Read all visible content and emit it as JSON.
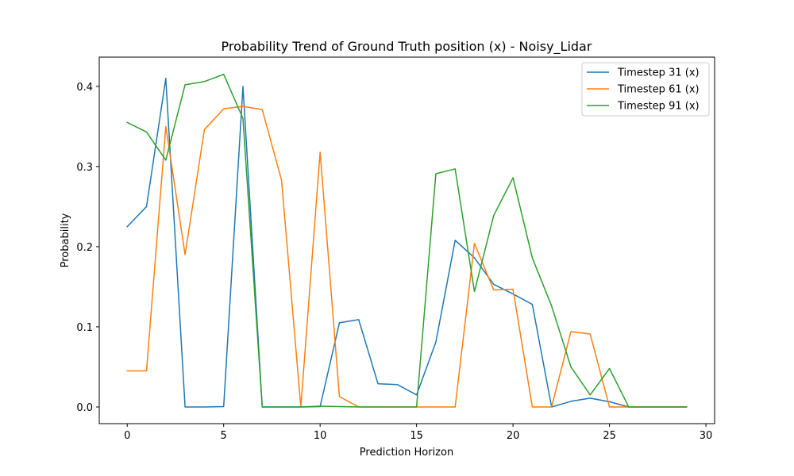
{
  "chart_data": {
    "type": "line",
    "title": "Probability Trend of Ground Truth position (x) - Noisy_Lidar",
    "xlabel": "Prediction Horizon",
    "ylabel": "Probability",
    "xlim": [
      -1.45,
      30.45
    ],
    "ylim": [
      -0.0208,
      0.4365
    ],
    "xticks": [
      0,
      5,
      10,
      15,
      20,
      25,
      30
    ],
    "yticks": [
      0.0,
      0.1,
      0.2,
      0.3,
      0.4
    ],
    "ytick_labels": [
      "0.0",
      "0.1",
      "0.2",
      "0.3",
      "0.4"
    ],
    "grid": false,
    "legend_position": "upper right",
    "x": [
      0,
      1,
      2,
      3,
      4,
      5,
      6,
      7,
      8,
      9,
      10,
      11,
      12,
      13,
      14,
      15,
      16,
      17,
      18,
      19,
      20,
      21,
      22,
      23,
      24,
      25,
      26,
      27,
      28,
      29
    ],
    "series": [
      {
        "name": "Timestep 31 (x)",
        "color": "#1f77b4",
        "values": [
          0.225,
          0.25,
          0.41,
          0.0,
          0.0,
          0.0005,
          0.4,
          0.0,
          0.0,
          0.0,
          0.0005,
          0.105,
          0.109,
          0.029,
          0.028,
          0.015,
          0.081,
          0.208,
          0.186,
          0.153,
          0.141,
          0.128,
          0.0,
          0.007,
          0.011,
          0.0065,
          0.0,
          0.0,
          0.0,
          0.0
        ]
      },
      {
        "name": "Timestep 61 (x)",
        "color": "#ff7f0e",
        "values": [
          0.045,
          0.045,
          0.35,
          0.19,
          0.346,
          0.372,
          0.375,
          0.371,
          0.283,
          0.0,
          0.318,
          0.013,
          0.0,
          0.0,
          0.0,
          0.0,
          0.0,
          0.0,
          0.204,
          0.146,
          0.147,
          0.0,
          0.0,
          0.094,
          0.091,
          0.0,
          0.0,
          0.0,
          0.0,
          0.0
        ]
      },
      {
        "name": "Timestep 91 (x)",
        "color": "#2ca02c",
        "values": [
          0.355,
          0.343,
          0.308,
          0.402,
          0.406,
          0.415,
          0.36,
          0.0,
          0.0,
          0.0,
          0.001,
          0.0005,
          0.0,
          0.0,
          0.0,
          0.0,
          0.291,
          0.297,
          0.144,
          0.239,
          0.286,
          0.186,
          0.126,
          0.05,
          0.015,
          0.048,
          0.0,
          0.0,
          0.0,
          0.0
        ]
      }
    ]
  }
}
